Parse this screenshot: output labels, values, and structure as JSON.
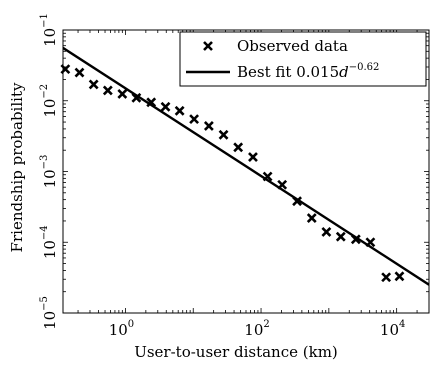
{
  "chart_data": {
    "type": "scatter",
    "xscale": "log",
    "yscale": "log",
    "xlim": [
      0.12,
      30000
    ],
    "ylim": [
      1e-05,
      0.1
    ],
    "xlabel": "User-to-user distance (km)",
    "ylabel": "Friendship probability",
    "grid": false,
    "legend_position": "top-right",
    "x_ticks": [
      {
        "value": 1,
        "base": "10",
        "exp": "0"
      },
      {
        "value": 100,
        "base": "10",
        "exp": "2"
      },
      {
        "value": 10000,
        "base": "10",
        "exp": "4"
      }
    ],
    "y_ticks": [
      {
        "value": 1e-05,
        "base": "10",
        "exp": "−5"
      },
      {
        "value": 0.0001,
        "base": "10",
        "exp": "−4"
      },
      {
        "value": 0.001,
        "base": "10",
        "exp": "−3"
      },
      {
        "value": 0.01,
        "base": "10",
        "exp": "−2"
      },
      {
        "value": 0.1,
        "base": "10",
        "exp": "−1"
      }
    ],
    "series": [
      {
        "name": "Observed data",
        "marker": "x",
        "x": [
          0.13,
          0.21,
          0.34,
          0.55,
          0.9,
          1.45,
          2.4,
          3.9,
          6.3,
          10.3,
          17,
          28,
          46,
          76,
          125,
          205,
          340,
          560,
          920,
          1500,
          2500,
          4100,
          7000,
          11000
        ],
        "y": [
          0.028,
          0.025,
          0.017,
          0.014,
          0.0125,
          0.011,
          0.0095,
          0.0082,
          0.0072,
          0.0055,
          0.0044,
          0.0033,
          0.0022,
          0.0016,
          0.00085,
          0.00065,
          0.00038,
          0.00022,
          0.00014,
          0.00012,
          0.00011,
          0.0001,
          3.2e-05,
          3.3e-05
        ]
      },
      {
        "name_prefix": "Best fit 0.015",
        "name_var": "d",
        "name_exp": "−0.62",
        "type": "line",
        "coefficient": 0.015,
        "exponent": -0.62,
        "x_range": [
          0.12,
          30000
        ]
      }
    ]
  }
}
